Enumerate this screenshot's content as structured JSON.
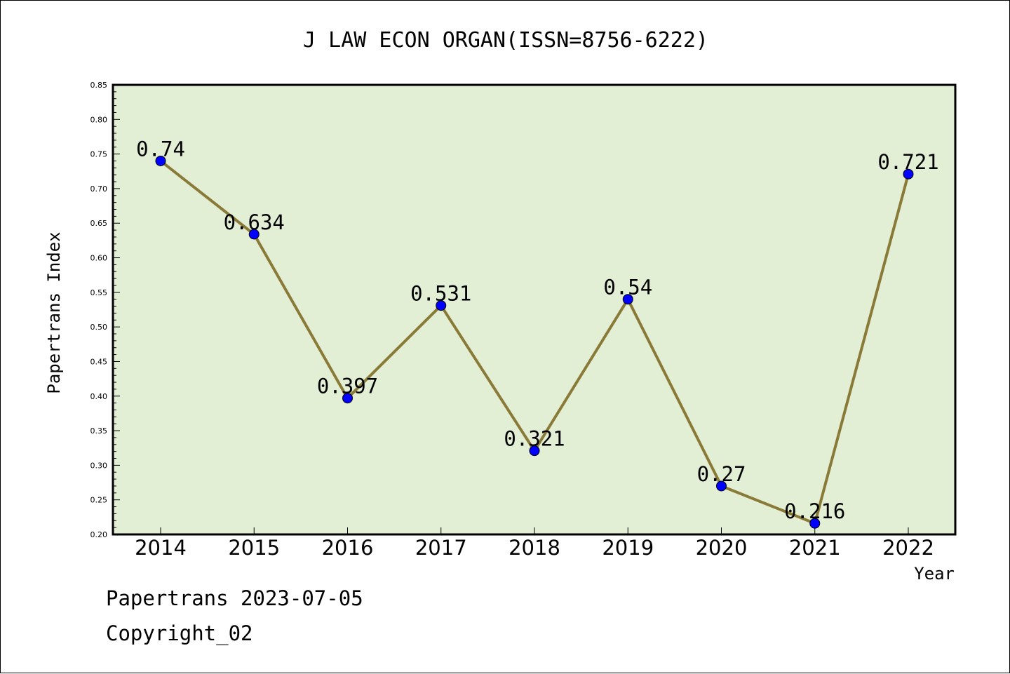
{
  "chart_data": {
    "type": "line",
    "title": "J LAW ECON ORGAN(ISSN=8756-6222)",
    "xlabel": "Year",
    "ylabel": "Papertrans Index",
    "categories": [
      "2014",
      "2015",
      "2016",
      "2017",
      "2018",
      "2019",
      "2020",
      "2021",
      "2022"
    ],
    "series": [
      {
        "values": [
          0.74,
          0.634,
          0.397,
          0.531,
          0.321,
          0.54,
          0.27,
          0.216,
          0.721
        ]
      }
    ],
    "data_labels": [
      "0.74",
      "0.634",
      "0.397",
      "0.531",
      "0.321",
      "0.54",
      "0.27",
      "0.216",
      "0.721"
    ],
    "ylim": [
      0.2,
      0.85
    ],
    "yticks": [
      "0.20",
      "0.25",
      "0.30",
      "0.35",
      "0.40",
      "0.45",
      "0.50",
      "0.55",
      "0.60",
      "0.65",
      "0.70",
      "0.75",
      "0.80",
      "0.85"
    ],
    "grid": false,
    "colors": {
      "plot_background": "#e2efd5",
      "line": "#8a7a38",
      "marker": "#0000ff"
    }
  },
  "footer": {
    "line1": "Papertrans 2023-07-05",
    "line2": "Copyright_02"
  }
}
